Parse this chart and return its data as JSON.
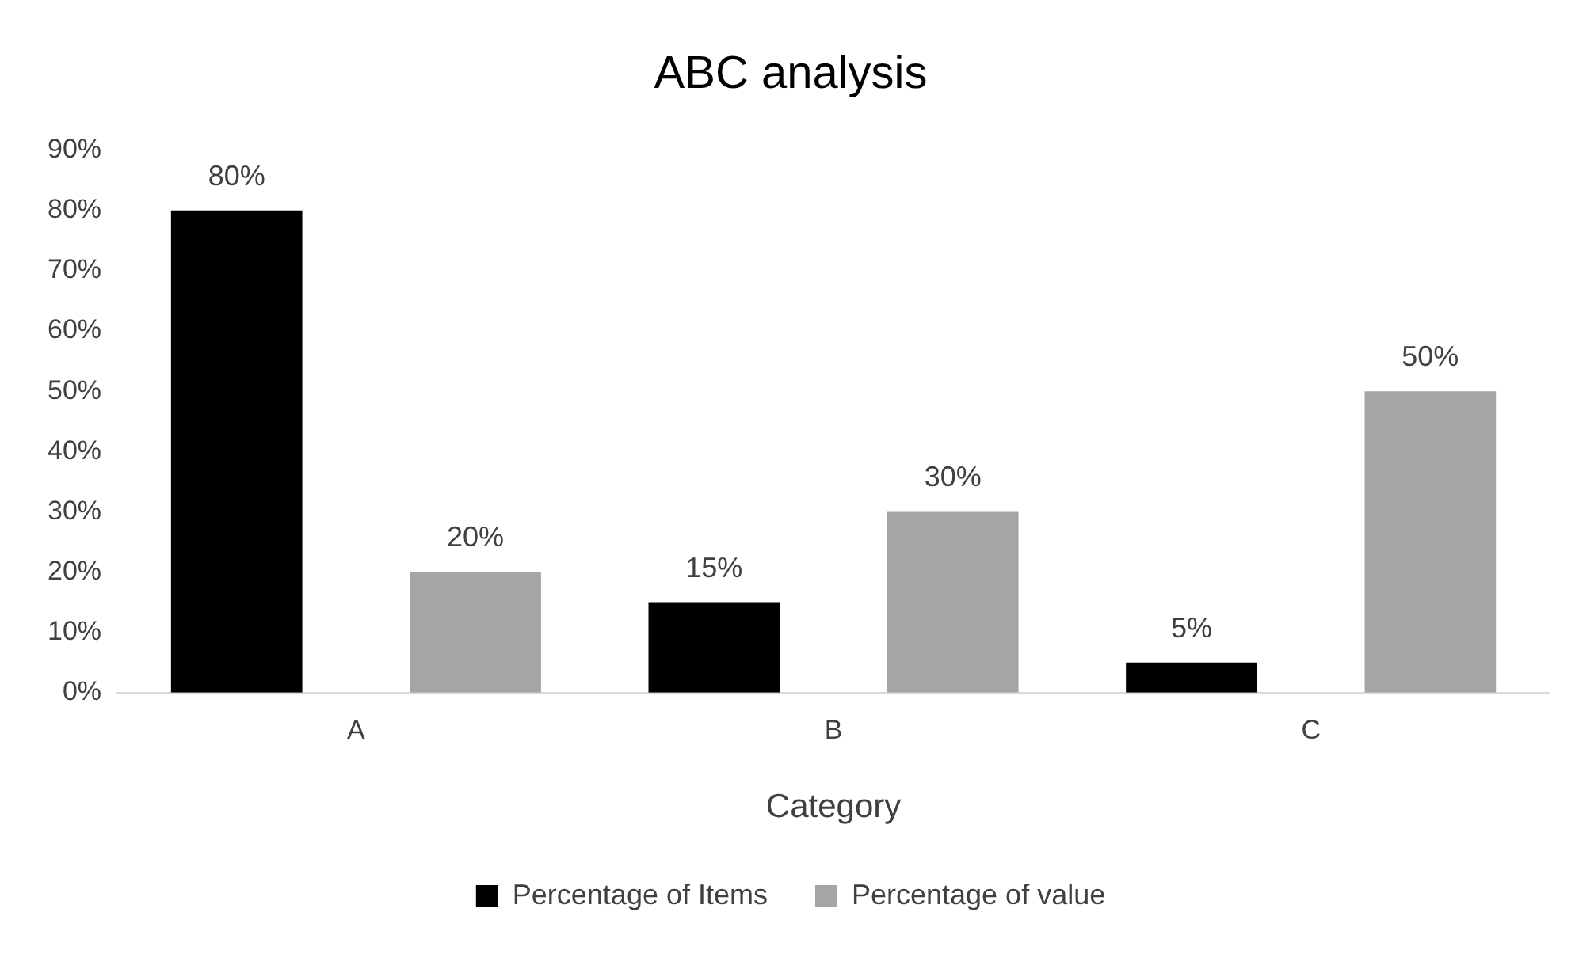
{
  "chart_data": {
    "type": "bar",
    "title": "ABC analysis",
    "xlabel": "Category",
    "categories": [
      "A",
      "B",
      "C"
    ],
    "series": [
      {
        "name": "Percentage of Items",
        "color": "#000000",
        "values": [
          80,
          15,
          5
        ],
        "value_labels": [
          "80%",
          "15%",
          "5%"
        ]
      },
      {
        "name": "Percentage of value",
        "color": "#a5a5a8",
        "values": [
          20,
          30,
          50
        ],
        "value_labels": [
          "20%",
          "30%",
          "50%"
        ]
      }
    ],
    "ylim": [
      0,
      90
    ],
    "yticks": [
      {
        "value": 0,
        "label": "0%"
      },
      {
        "value": 10,
        "label": "10%"
      },
      {
        "value": 20,
        "label": "20%"
      },
      {
        "value": 30,
        "label": "30%"
      },
      {
        "value": 40,
        "label": "40%"
      },
      {
        "value": 50,
        "label": "50%"
      },
      {
        "value": 60,
        "label": "60%"
      },
      {
        "value": 70,
        "label": "70%"
      },
      {
        "value": 80,
        "label": "80%"
      },
      {
        "value": 90,
        "label": "90%"
      }
    ],
    "grid": false,
    "legend": "bottom"
  }
}
